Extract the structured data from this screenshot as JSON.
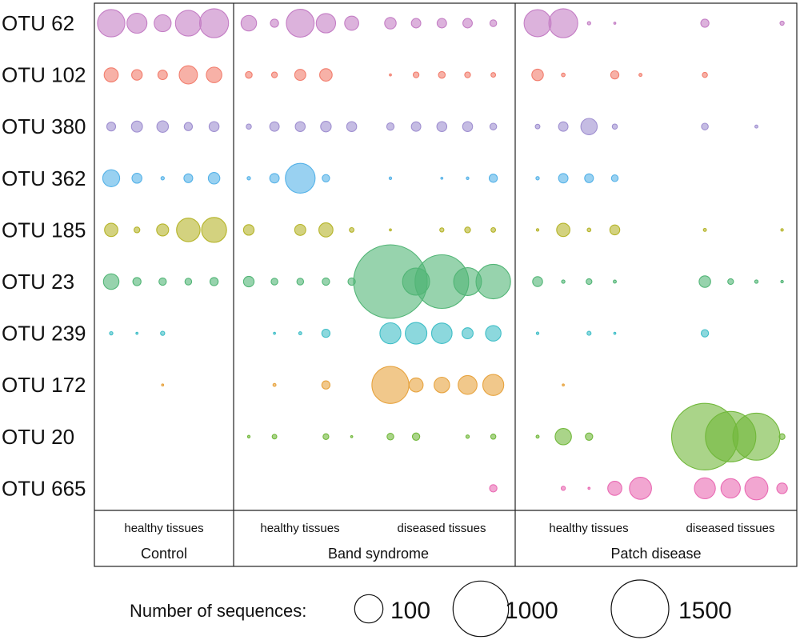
{
  "chart_data": {
    "type": "bubble",
    "rows": [
      "OTU 62",
      "OTU 102",
      "OTU 380",
      "OTU 362",
      "OTU 185",
      "OTU 23",
      "OTU 239",
      "OTU 172",
      "OTU 20",
      "OTU 665"
    ],
    "row_colors": [
      "#c47ec5",
      "#f27d6d",
      "#9f8fd0",
      "#55b2e8",
      "#b5b429",
      "#52b576",
      "#3fbec7",
      "#e7a33e",
      "#71b83b",
      "#e96ab3"
    ],
    "groups": [
      {
        "name": "Control",
        "subgroups": [
          {
            "label": "healthy tissues",
            "samples": 5
          }
        ]
      },
      {
        "name": "Band syndrome",
        "subgroups": [
          {
            "label": "healthy tissues",
            "samples": 5
          },
          {
            "label": "diseased tissues",
            "samples": 5
          }
        ]
      },
      {
        "name": "Patch disease",
        "subgroups": [
          {
            "label": "healthy tissues",
            "samples": 5
          },
          {
            "label": "diseased tissues",
            "samples": 5
          }
        ]
      }
    ],
    "samples_per_row": 25,
    "values": [
      [
        340,
        180,
        130,
        300,
        380,
        110,
        30,
        350,
        170,
        90,
        60,
        40,
        40,
        40,
        20,
        330,
        380,
        5,
        2,
        0,
        0,
        30,
        0,
        0,
        8
      ],
      [
        90,
        50,
        40,
        150,
        110,
        20,
        15,
        55,
        70,
        0,
        2,
        15,
        20,
        15,
        10,
        60,
        6,
        0,
        30,
        4,
        0,
        12,
        0,
        0,
        0
      ],
      [
        35,
        55,
        60,
        30,
        45,
        12,
        40,
        45,
        50,
        45,
        25,
        40,
        45,
        45,
        20,
        10,
        40,
        120,
        12,
        0,
        0,
        20,
        0,
        4,
        0
      ],
      [
        130,
        45,
        5,
        35,
        60,
        5,
        40,
        400,
        25,
        0,
        3,
        0,
        2,
        3,
        30,
        5,
        40,
        35,
        20,
        0,
        0,
        0,
        0,
        0,
        0
      ],
      [
        80,
        15,
        65,
        250,
        280,
        50,
        0,
        55,
        90,
        10,
        2,
        0,
        8,
        15,
        10,
        3,
        80,
        6,
        45,
        0,
        0,
        4,
        0,
        0,
        3
      ],
      [
        110,
        30,
        25,
        20,
        30,
        50,
        20,
        20,
        25,
        25,
        2450,
        330,
        1300,
        350,
        540,
        45,
        5,
        15,
        4,
        0,
        0,
        60,
        15,
        5,
        3
      ],
      [
        5,
        1,
        8,
        0,
        0,
        0,
        1,
        4,
        30,
        0,
        200,
        210,
        190,
        55,
        110,
        3,
        0,
        7,
        2,
        0,
        0,
        25,
        0,
        0,
        0
      ],
      [
        0,
        0,
        2,
        0,
        0,
        0,
        4,
        0,
        30,
        0,
        620,
        90,
        110,
        160,
        200,
        0,
        2,
        0,
        0,
        0,
        0,
        0,
        0,
        0,
        0
      ],
      [
        0,
        0,
        0,
        0,
        0,
        3,
        10,
        0,
        15,
        2,
        20,
        25,
        0,
        5,
        12,
        4,
        120,
        25,
        0,
        0,
        0,
        2000,
        1150,
        1000,
        15
      ],
      [
        0,
        0,
        0,
        0,
        0,
        0,
        0,
        0,
        0,
        0,
        0,
        0,
        0,
        0,
        25,
        0,
        8,
        1,
        90,
        220,
        0,
        200,
        170,
        240,
        50
      ]
    ],
    "legend": {
      "title": "Number of sequences:",
      "entries": [
        {
          "label": "100",
          "value": 100
        },
        {
          "label": "1000",
          "value": 1000
        },
        {
          "label": "1500",
          "value": 1500
        }
      ]
    }
  }
}
